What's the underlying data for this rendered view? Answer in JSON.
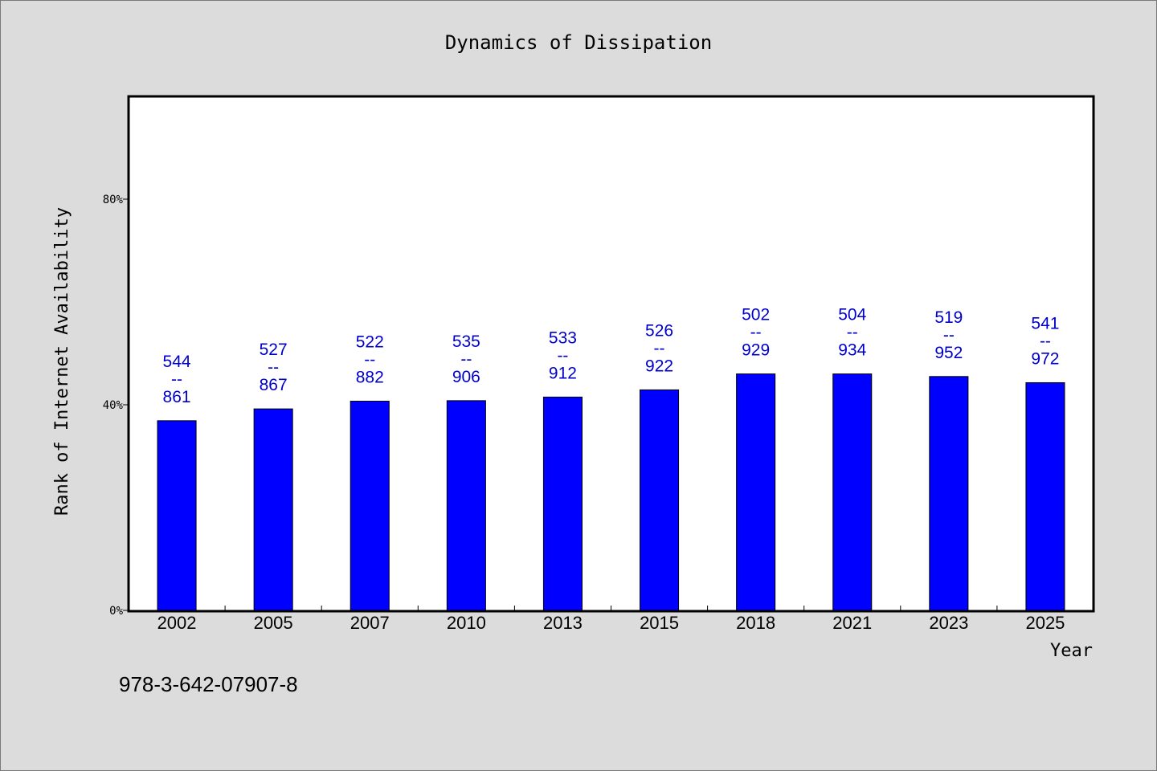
{
  "chart_data": {
    "type": "bar",
    "title": "Dynamics of Dissipation",
    "xlabel": "Year",
    "ylabel": "Rank of Internet Availability",
    "y_unit": "%",
    "ylim": [
      0,
      100
    ],
    "yticks": [
      0,
      40,
      80
    ],
    "ytick_labels": [
      "0%",
      "40%",
      "80%"
    ],
    "grid": false,
    "categories": [
      "2002",
      "2005",
      "2007",
      "2010",
      "2013",
      "2015",
      "2018",
      "2021",
      "2023",
      "2025"
    ],
    "series": [
      {
        "color": "#0000ff",
        "values": [
          36.9,
          39.2,
          40.7,
          40.8,
          41.5,
          42.9,
          46.0,
          46.0,
          45.5,
          44.3
        ],
        "labels_top": [
          "544",
          "527",
          "522",
          "535",
          "533",
          "526",
          "502",
          "504",
          "519",
          "541"
        ],
        "labels_bottom": [
          "861",
          "867",
          "882",
          "906",
          "912",
          "922",
          "929",
          "934",
          "952",
          "972"
        ]
      }
    ],
    "label_separator": "--",
    "label_color": "#0000cc"
  },
  "footer": {
    "isbn": "978-3-642-07907-8"
  }
}
